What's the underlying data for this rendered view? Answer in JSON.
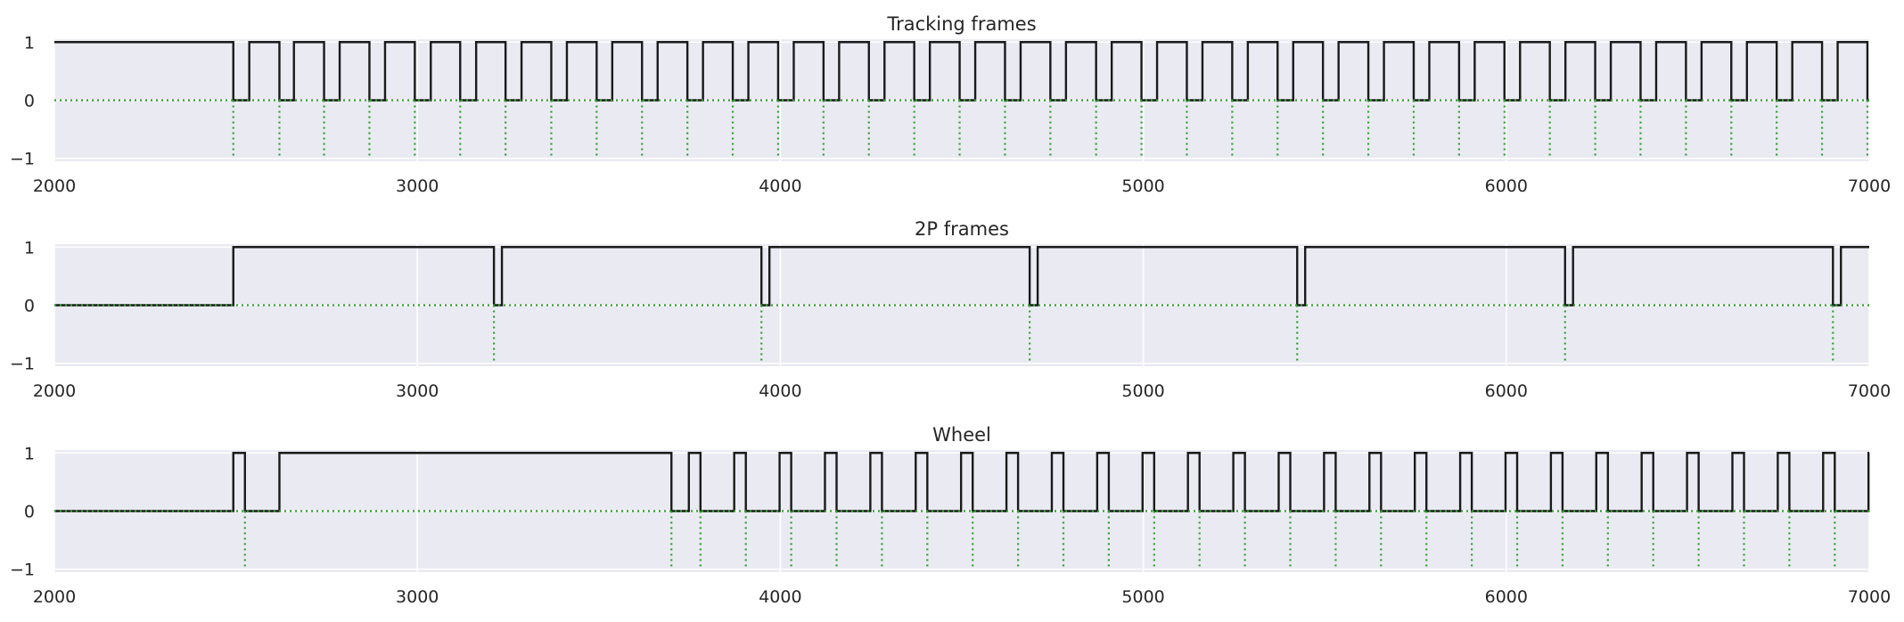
{
  "chart_data": [
    {
      "type": "line",
      "title": "Tracking frames",
      "xlabel": "",
      "ylabel": "",
      "xlim": [
        2000,
        7000
      ],
      "ylim": [
        -1.05,
        1.05
      ],
      "x_ticks": [
        2000,
        3000,
        4000,
        5000,
        6000,
        7000
      ],
      "y_ticks": [
        1,
        0,
        -1
      ],
      "y_tick_labels": [
        "1",
        "0",
        "−1"
      ],
      "grid": true,
      "series": [
        {
          "role": "signal",
          "color": "#1a1a1a",
          "style": "solid",
          "initial_value": 1,
          "transitions": [
            2493,
            2537,
            2620,
            2660,
            2743,
            2786,
            2868,
            2911,
            2993,
            3037,
            3118,
            3162,
            3243,
            3287,
            3369,
            3412,
            3494,
            3537,
            3619,
            3662,
            3744,
            3787,
            3869,
            3912,
            3994,
            4037,
            4119,
            4162,
            4244,
            4287,
            4369,
            4412,
            4494,
            4537,
            4619,
            4662,
            4744,
            4787,
            4870,
            4913,
            4995,
            5038,
            5120,
            5163,
            5245,
            5288,
            5370,
            5413,
            5495,
            5538,
            5620,
            5663,
            5745,
            5788,
            5870,
            5913,
            5995,
            6038,
            6120,
            6163,
            6245,
            6288,
            6370,
            6413,
            6495,
            6538,
            6620,
            6663,
            6745,
            6788,
            6870,
            6913,
            6995
          ]
        },
        {
          "role": "events",
          "color": "#2ca02c",
          "style": "dotted",
          "baseline": 0,
          "event_value": -1,
          "events": [
            2493,
            2620,
            2743,
            2868,
            2993,
            3118,
            3243,
            3369,
            3494,
            3619,
            3744,
            3869,
            3994,
            4119,
            4244,
            4369,
            4494,
            4619,
            4744,
            4870,
            4995,
            5120,
            5245,
            5370,
            5495,
            5620,
            5745,
            5870,
            5995,
            6120,
            6245,
            6370,
            6495,
            6620,
            6745,
            6870,
            6995
          ]
        }
      ]
    },
    {
      "type": "line",
      "title": "2P frames",
      "xlabel": "",
      "ylabel": "",
      "xlim": [
        2000,
        7000
      ],
      "ylim": [
        -1.05,
        1.05
      ],
      "x_ticks": [
        2000,
        3000,
        4000,
        5000,
        6000,
        7000
      ],
      "y_ticks": [
        1,
        0,
        -1
      ],
      "y_tick_labels": [
        "1",
        "0",
        "−1"
      ],
      "grid": true,
      "series": [
        {
          "role": "signal",
          "color": "#1a1a1a",
          "style": "solid",
          "initial_value": 0,
          "transitions": [
            2493,
            3211,
            3233,
            3948,
            3970,
            4687,
            4709,
            5424,
            5446,
            6162,
            6184,
            6900,
            6922
          ]
        },
        {
          "role": "events",
          "color": "#2ca02c",
          "style": "dotted",
          "baseline": 0,
          "event_value": -1,
          "events": [
            3211,
            3948,
            4687,
            5424,
            6162,
            6900
          ]
        }
      ]
    },
    {
      "type": "line",
      "title": "Wheel",
      "xlabel": "",
      "ylabel": "",
      "xlim": [
        2000,
        7000
      ],
      "ylim": [
        -1.05,
        1.05
      ],
      "x_ticks": [
        2000,
        3000,
        4000,
        5000,
        6000,
        7000
      ],
      "y_ticks": [
        1,
        0,
        -1
      ],
      "y_tick_labels": [
        "1",
        "0",
        "−1"
      ],
      "grid": true,
      "series": [
        {
          "role": "signal",
          "color": "#1a1a1a",
          "style": "solid",
          "initial_value": 0,
          "transitions": [
            2493,
            2525,
            2620,
            3700,
            3748,
            3780,
            3873,
            3905,
            3998,
            4030,
            4123,
            4155,
            4248,
            4280,
            4373,
            4405,
            4498,
            4530,
            4623,
            4655,
            4748,
            4780,
            4873,
            4905,
            4998,
            5030,
            5123,
            5155,
            5248,
            5280,
            5373,
            5405,
            5498,
            5530,
            5623,
            5655,
            5748,
            5780,
            5873,
            5905,
            5998,
            6030,
            6123,
            6155,
            6248,
            6280,
            6373,
            6405,
            6498,
            6530,
            6623,
            6655,
            6748,
            6780,
            6873,
            6905,
            6998
          ]
        },
        {
          "role": "events",
          "color": "#2ca02c",
          "style": "dotted",
          "baseline": 0,
          "event_value": -1,
          "events": [
            2525,
            3700,
            3780,
            3905,
            4030,
            4155,
            4280,
            4405,
            4530,
            4655,
            4780,
            4905,
            5030,
            5155,
            5280,
            5405,
            5530,
            5655,
            5780,
            5905,
            6030,
            6155,
            6280,
            6405,
            6530,
            6655,
            6780,
            6905
          ]
        }
      ]
    }
  ]
}
